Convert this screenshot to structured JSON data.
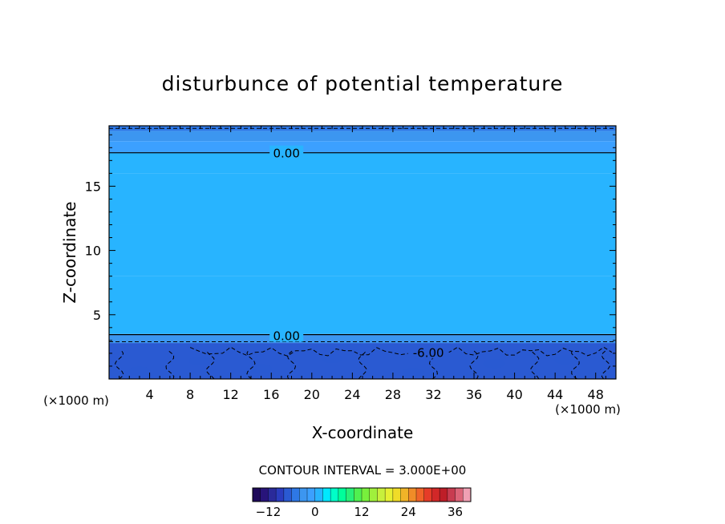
{
  "chart_data": {
    "type": "heatmap",
    "title": "disturbunce of potential temperature",
    "xlabel": "X-coordinate",
    "ylabel": "Z-coordinate",
    "x_unit_left": "(×1000 m)",
    "x_unit_right": "(×1000 m)",
    "xlim": [
      0,
      50
    ],
    "ylim": [
      0,
      19.7
    ],
    "x_ticks": [
      4,
      8,
      12,
      16,
      20,
      24,
      28,
      32,
      36,
      40,
      44,
      48
    ],
    "y_ticks": [
      5,
      10,
      15
    ],
    "contour_interval_label": "CONTOUR INTERVAL = 3.000E+00",
    "contour_labels": [
      {
        "text": "0.00",
        "x": 17.5,
        "z": 17.6
      },
      {
        "text": "0.00",
        "x": 17.5,
        "z": 3.4
      },
      {
        "text": "-6.00",
        "x": 31.5,
        "z": 2.1
      }
    ],
    "field_bands": [
      {
        "z0": 19.3,
        "z1": 19.7,
        "value": -4.5
      },
      {
        "z0": 18.5,
        "z1": 19.3,
        "value": -2.5
      },
      {
        "z0": 17.6,
        "z1": 18.5,
        "value": -1.5
      },
      {
        "z0": 16.0,
        "z1": 17.6,
        "value": 0.8
      },
      {
        "z0": 12.0,
        "z1": 16.0,
        "value": 1.8
      },
      {
        "z0": 8.0,
        "z1": 12.0,
        "value": 1.2
      },
      {
        "z0": 3.5,
        "z1": 8.0,
        "value": 0.6
      },
      {
        "z0": 2.8,
        "z1": 3.5,
        "value": -3.5
      },
      {
        "z0": 0.0,
        "z1": 2.8,
        "value": -6.5
      }
    ],
    "colorbar": {
      "min": -16,
      "max": 40,
      "step": 2,
      "tick_values": [
        -12,
        0,
        12,
        24,
        36
      ],
      "colors": [
        "#1e0a5a",
        "#28147a",
        "#2a2a9a",
        "#2a3cbe",
        "#2a5ad2",
        "#2e78e6",
        "#3c96f0",
        "#3ca0ff",
        "#28b4ff",
        "#00e8ff",
        "#00ffc8",
        "#00ff9a",
        "#28f078",
        "#50f050",
        "#78f03c",
        "#a0f03c",
        "#c8f03c",
        "#e6f032",
        "#f0dc28",
        "#f0b428",
        "#f08c28",
        "#f06428",
        "#e63c28",
        "#d22828",
        "#be1e28",
        "#c83c50",
        "#dc6478",
        "#f0a0b4"
      ]
    }
  }
}
